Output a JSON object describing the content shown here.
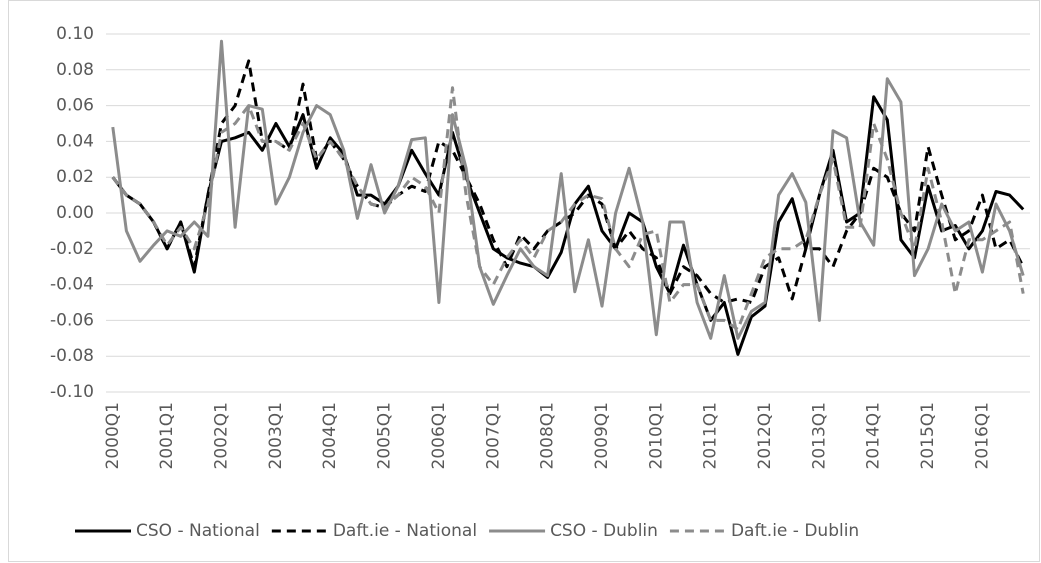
{
  "chart_data": {
    "type": "line",
    "categories": [
      "2000Q1",
      null,
      null,
      null,
      "2001Q1",
      null,
      null,
      null,
      "2002Q1",
      null,
      null,
      null,
      "2003Q1",
      null,
      null,
      null,
      "2004Q1",
      null,
      null,
      null,
      "2005Q1",
      null,
      null,
      null,
      "2006Q1",
      null,
      null,
      null,
      "2007Q1",
      null,
      null,
      null,
      "2008Q1",
      null,
      null,
      null,
      "2009Q1",
      null,
      null,
      null,
      "2010Q1",
      null,
      null,
      null,
      "2011Q1",
      null,
      null,
      null,
      "2012Q1",
      null,
      null,
      null,
      "2013Q1",
      null,
      null,
      null,
      "2014Q1",
      null,
      null,
      null,
      "2015Q1",
      null,
      null,
      null,
      "2016Q1",
      null,
      null,
      null
    ],
    "series": [
      {
        "name": "CSO - National",
        "color": "#000000",
        "dash": false,
        "values": [
          0.02,
          0.01,
          0.005,
          -0.005,
          -0.02,
          -0.005,
          -0.033,
          0.01,
          0.04,
          0.042,
          0.045,
          0.035,
          0.05,
          0.037,
          0.055,
          0.025,
          0.042,
          0.033,
          0.01,
          0.01,
          0.005,
          0.015,
          0.035,
          0.022,
          0.01,
          0.045,
          0.02,
          0.0,
          -0.02,
          -0.025,
          -0.028,
          -0.03,
          -0.036,
          -0.022,
          0.005,
          0.015,
          -0.01,
          -0.02,
          0.0,
          -0.005,
          -0.03,
          -0.045,
          -0.018,
          -0.04,
          -0.06,
          -0.05,
          -0.079,
          -0.058,
          -0.052,
          -0.005,
          0.008,
          -0.02,
          0.01,
          0.035,
          -0.005,
          0.0,
          0.065,
          0.052,
          -0.015,
          -0.025,
          0.015,
          -0.01,
          -0.007,
          -0.02,
          -0.01,
          0.012,
          0.01,
          0.002
        ]
      },
      {
        "name": "Daft.ie - National",
        "color": "#000000",
        "dash": true,
        "values": [
          0.02,
          0.01,
          0.005,
          -0.005,
          -0.02,
          -0.005,
          -0.03,
          0.01,
          0.05,
          0.06,
          0.085,
          0.04,
          0.04,
          0.035,
          0.072,
          0.03,
          0.04,
          0.03,
          0.015,
          0.005,
          0.003,
          0.01,
          0.015,
          0.012,
          0.04,
          0.035,
          0.02,
          0.005,
          -0.015,
          -0.03,
          -0.012,
          -0.02,
          -0.01,
          -0.005,
          0.0,
          0.01,
          0.005,
          -0.02,
          -0.01,
          -0.02,
          -0.025,
          -0.045,
          -0.03,
          -0.035,
          -0.045,
          -0.05,
          -0.048,
          -0.05,
          -0.03,
          -0.025,
          -0.048,
          -0.02,
          -0.02,
          -0.03,
          -0.01,
          0.0,
          0.025,
          0.02,
          0.0,
          -0.01,
          0.037,
          0.01,
          -0.015,
          -0.01,
          0.01,
          -0.02,
          -0.015,
          -0.03
        ]
      },
      {
        "name": "CSO - Dublin",
        "color": "#8c8c8c",
        "dash": false,
        "values": [
          0.048,
          -0.01,
          -0.027,
          -0.018,
          -0.01,
          -0.013,
          -0.005,
          -0.013,
          0.096,
          -0.008,
          0.06,
          0.058,
          0.005,
          0.02,
          0.045,
          0.06,
          0.055,
          0.035,
          -0.003,
          0.027,
          0.0,
          0.015,
          0.041,
          0.042,
          -0.05,
          0.055,
          0.025,
          -0.03,
          -0.051,
          -0.035,
          -0.02,
          -0.03,
          -0.035,
          0.022,
          -0.044,
          -0.015,
          -0.052,
          0.0,
          0.025,
          -0.005,
          -0.068,
          -0.005,
          -0.005,
          -0.05,
          -0.07,
          -0.035,
          -0.07,
          -0.055,
          -0.05,
          0.01,
          0.022,
          0.006,
          -0.06,
          0.046,
          0.042,
          -0.005,
          -0.018,
          0.075,
          0.062,
          -0.035,
          -0.02,
          0.005,
          -0.01,
          -0.005,
          -0.033,
          0.005,
          -0.01,
          -0.035
        ]
      },
      {
        "name": "Daft.ie - Dublin",
        "color": "#8c8c8c",
        "dash": true,
        "values": [
          0.02,
          0.01,
          0.005,
          -0.005,
          -0.018,
          -0.008,
          -0.02,
          0.005,
          0.045,
          0.05,
          0.06,
          0.04,
          0.04,
          0.035,
          0.05,
          0.03,
          0.04,
          0.03,
          0.015,
          0.005,
          0.003,
          0.01,
          0.02,
          0.015,
          0.0,
          0.07,
          0.01,
          -0.03,
          -0.04,
          -0.025,
          -0.015,
          -0.025,
          -0.01,
          -0.005,
          0.005,
          0.01,
          0.008,
          -0.02,
          -0.03,
          -0.012,
          -0.01,
          -0.05,
          -0.04,
          -0.04,
          -0.06,
          -0.06,
          -0.065,
          -0.045,
          -0.025,
          -0.02,
          -0.02,
          -0.015,
          0.01,
          0.03,
          -0.008,
          -0.008,
          0.05,
          0.03,
          0.0,
          -0.02,
          0.025,
          -0.005,
          -0.045,
          -0.015,
          -0.015,
          -0.01,
          -0.005,
          -0.045
        ]
      }
    ],
    "ylim": [
      -0.1,
      0.1
    ],
    "yticks": [
      {
        "value": 0.1,
        "label": "0.10"
      },
      {
        "value": 0.08,
        "label": "0.08"
      },
      {
        "value": 0.06,
        "label": "0.06"
      },
      {
        "value": 0.04,
        "label": "0.04"
      },
      {
        "value": 0.02,
        "label": "0.02"
      },
      {
        "value": 0,
        "label": "0.00"
      },
      {
        "value": -0.02,
        "label": "-0.02"
      },
      {
        "value": -0.04,
        "label": "-0.04"
      },
      {
        "value": -0.06,
        "label": "-0.06"
      },
      {
        "value": -0.08,
        "label": "-0.08"
      },
      {
        "value": -0.1,
        "label": "-0.10"
      }
    ],
    "grid": true,
    "legend": "bottom"
  }
}
